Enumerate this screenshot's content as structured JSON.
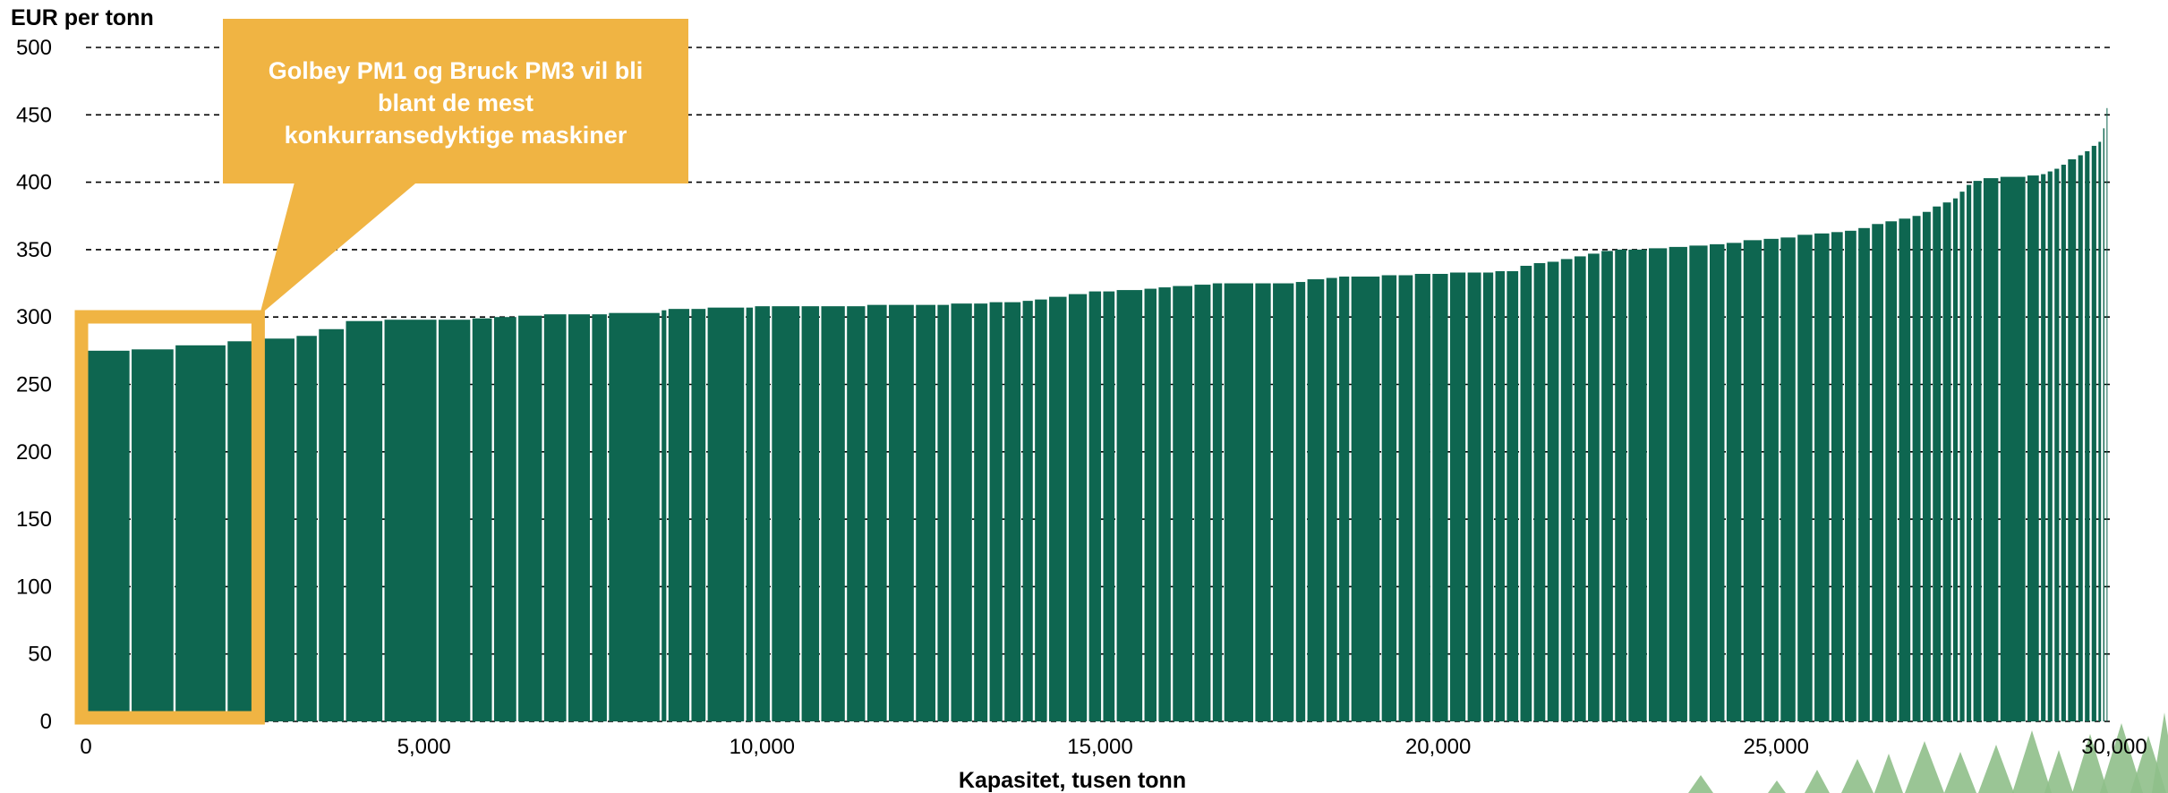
{
  "chart_data": {
    "type": "bar",
    "subtype": "cost-curve (variable-width bars)",
    "ylabel": "EUR per tonn",
    "xlabel": "Kapasitet, tusen tonn",
    "ylim": [
      0,
      500
    ],
    "xlim": [
      0,
      30000
    ],
    "grid": "horizontal dashed",
    "yticks": [
      "0",
      "50",
      "100",
      "150",
      "200",
      "250",
      "300",
      "350",
      "400",
      "450",
      "500"
    ],
    "xticks": [
      "0",
      "5,000",
      "10,000",
      "15,000",
      "20,000",
      "25,000",
      "30,000"
    ],
    "bar_color": "#0e6650",
    "highlight_color": "#f0b443",
    "highlight_range": [
      0,
      2600
    ],
    "callout_lines": [
      "Golbey PM1 og Bruck PM3 vil bli",
      "blant de mest",
      "konkurransedyktige maskiner"
    ],
    "bars": [
      [
        0,
        275
      ],
      [
        660,
        276
      ],
      [
        1310,
        279
      ],
      [
        2080,
        282
      ],
      [
        2600,
        284
      ],
      [
        3100,
        286
      ],
      [
        3430,
        291
      ],
      [
        3830,
        297
      ],
      [
        4400,
        298
      ],
      [
        5200,
        298
      ],
      [
        5700,
        299
      ],
      [
        6020,
        300
      ],
      [
        6380,
        301
      ],
      [
        6760,
        302
      ],
      [
        7120,
        302
      ],
      [
        7470,
        302
      ],
      [
        7720,
        303
      ],
      [
        8500,
        305
      ],
      [
        8600,
        306
      ],
      [
        8940,
        306
      ],
      [
        9180,
        307
      ],
      [
        9750,
        307
      ],
      [
        9880,
        308
      ],
      [
        10130,
        308
      ],
      [
        10570,
        308
      ],
      [
        10860,
        308
      ],
      [
        11240,
        308
      ],
      [
        11540,
        309
      ],
      [
        11860,
        309
      ],
      [
        12260,
        309
      ],
      [
        12580,
        309
      ],
      [
        12780,
        310
      ],
      [
        13120,
        310
      ],
      [
        13350,
        311
      ],
      [
        13570,
        311
      ],
      [
        13840,
        312
      ],
      [
        14020,
        313
      ],
      [
        14230,
        315
      ],
      [
        14520,
        317
      ],
      [
        14820,
        319
      ],
      [
        15030,
        319
      ],
      [
        15230,
        320
      ],
      [
        15640,
        321
      ],
      [
        15850,
        322
      ],
      [
        16060,
        323
      ],
      [
        16380,
        324
      ],
      [
        16650,
        325
      ],
      [
        16820,
        325
      ],
      [
        17280,
        325
      ],
      [
        17540,
        325
      ],
      [
        17880,
        326
      ],
      [
        18050,
        328
      ],
      [
        18330,
        329
      ],
      [
        18520,
        330
      ],
      [
        18700,
        330
      ],
      [
        19150,
        331
      ],
      [
        19400,
        331
      ],
      [
        19640,
        332
      ],
      [
        19900,
        332
      ],
      [
        20160,
        333
      ],
      [
        20420,
        333
      ],
      [
        20650,
        333
      ],
      [
        20830,
        334
      ],
      [
        21000,
        334
      ],
      [
        21200,
        338
      ],
      [
        21400,
        340
      ],
      [
        21600,
        341
      ],
      [
        21800,
        343
      ],
      [
        22000,
        345
      ],
      [
        22200,
        347
      ],
      [
        22400,
        349
      ],
      [
        22600,
        350
      ],
      [
        22800,
        350
      ],
      [
        23100,
        351
      ],
      [
        23400,
        352
      ],
      [
        23700,
        353
      ],
      [
        24000,
        354
      ],
      [
        24250,
        355
      ],
      [
        24500,
        357
      ],
      [
        24800,
        358
      ],
      [
        25050,
        359
      ],
      [
        25300,
        361
      ],
      [
        25550,
        362
      ],
      [
        25800,
        363
      ],
      [
        26000,
        364
      ],
      [
        26200,
        366
      ],
      [
        26400,
        369
      ],
      [
        26600,
        371
      ],
      [
        26800,
        373
      ],
      [
        27000,
        375
      ],
      [
        27150,
        378
      ],
      [
        27300,
        382
      ],
      [
        27450,
        385
      ],
      [
        27600,
        388
      ],
      [
        27700,
        393
      ],
      [
        27800,
        398
      ],
      [
        27900,
        401
      ],
      [
        28050,
        403
      ],
      [
        28300,
        404
      ],
      [
        28700,
        405
      ],
      [
        28900,
        406
      ],
      [
        29000,
        408
      ],
      [
        29100,
        410
      ],
      [
        29200,
        413
      ],
      [
        29300,
        417
      ],
      [
        29450,
        420
      ],
      [
        29550,
        423
      ],
      [
        29650,
        427
      ],
      [
        29750,
        430
      ],
      [
        29820,
        440
      ],
      [
        29870,
        455
      ]
    ],
    "x_end": 29900
  }
}
